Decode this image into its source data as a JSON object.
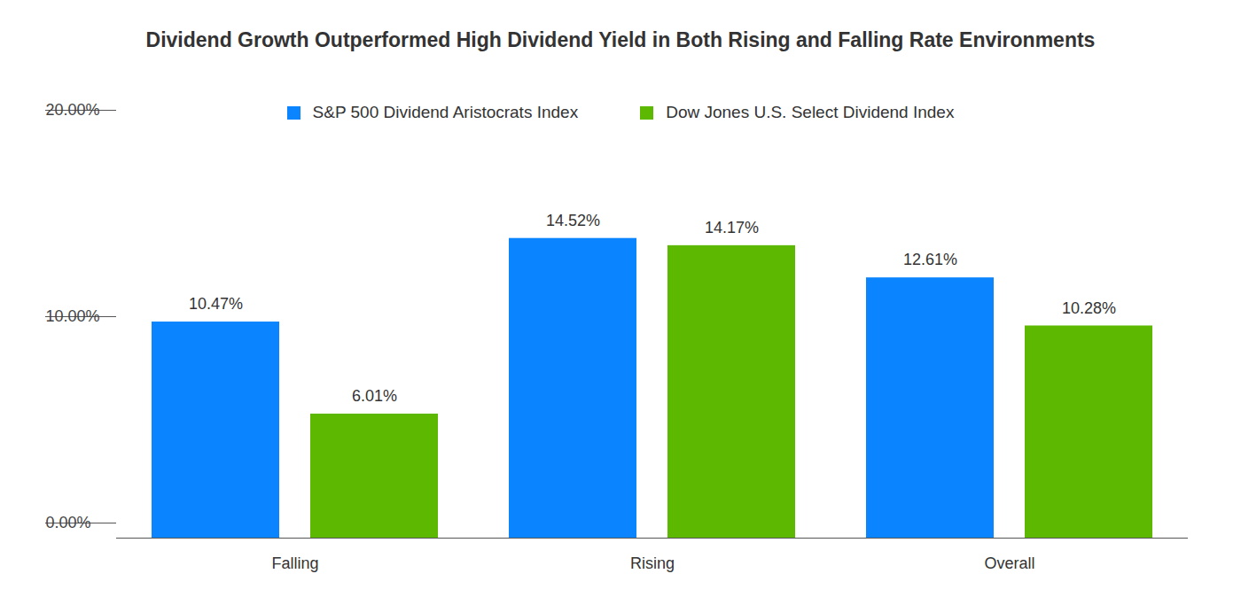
{
  "chart_data": {
    "type": "bar",
    "title": "Dividend Growth Outperformed High Dividend Yield in Both Rising and Falling Rate Environments",
    "categories": [
      "Falling",
      "Rising",
      "Overall"
    ],
    "series": [
      {
        "name": "S&P 500 Dividend Aristocrats Index",
        "color": "#0a84ff",
        "values": [
          10.47,
          14.52,
          12.61
        ],
        "value_labels": [
          "10.47%",
          "14.52%",
          "12.61%"
        ]
      },
      {
        "name": "Dow Jones U.S. Select Dividend Index",
        "color": "#5cb800",
        "values": [
          6.01,
          14.17,
          10.28
        ],
        "value_labels": [
          "6.01%",
          "14.17%",
          "10.28%"
        ]
      }
    ],
    "ylim": [
      0,
      20
    ],
    "yticks": [
      {
        "value": 0,
        "label": "0.00%"
      },
      {
        "value": 10,
        "label": "10.00%"
      },
      {
        "value": 20,
        "label": "20.00%"
      }
    ],
    "grid": false,
    "legend": "top",
    "data_labels": true
  }
}
